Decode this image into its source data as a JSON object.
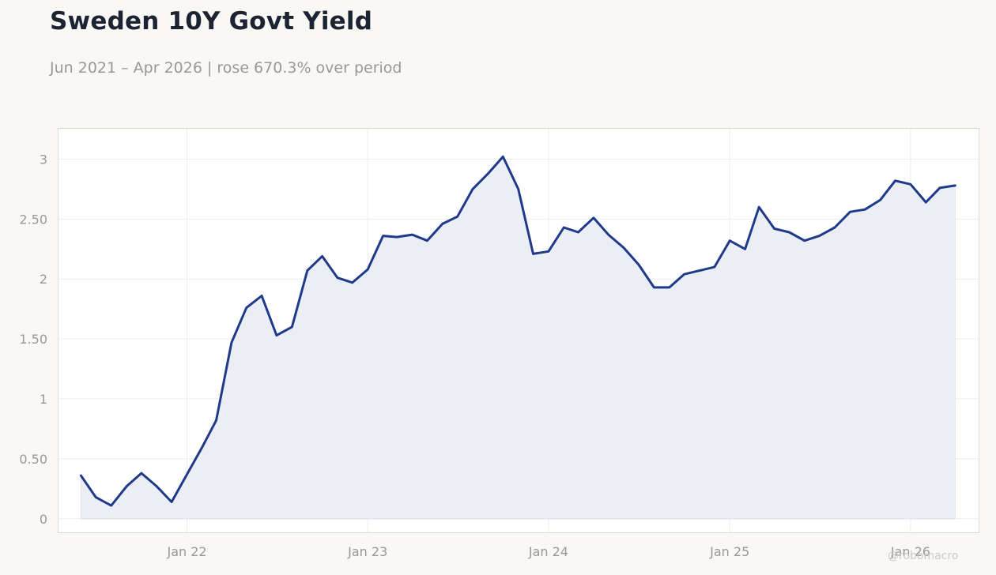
{
  "header": {
    "title": "Sweden 10Y Govt Yield",
    "subtitle": "Jun 2021 – Apr 2026 | rose 670.3% over period"
  },
  "watermark": "@robomacro",
  "colors": {
    "line": "#1f3a8a",
    "fill": "#eceef5",
    "grid": "#ededed",
    "tick_text": "#9a9893",
    "plot_border": "#dcdad5"
  },
  "chart_data": {
    "type": "area",
    "title": "Sweden 10Y Govt Yield",
    "xlabel": "",
    "ylabel": "",
    "ylim": [
      -0.12,
      3.26
    ],
    "xlim": [
      "2021-04-15",
      "2026-05-20"
    ],
    "grid": true,
    "legend": "none",
    "y_ticks": [
      {
        "value": 0,
        "label": "0"
      },
      {
        "value": 0.5,
        "label": "0.50"
      },
      {
        "value": 1,
        "label": "1"
      },
      {
        "value": 1.5,
        "label": "1.50"
      },
      {
        "value": 2,
        "label": "2"
      },
      {
        "value": 2.5,
        "label": "2.50"
      },
      {
        "value": 3,
        "label": "3"
      }
    ],
    "x_ticks": [
      {
        "value": "2022-01-01",
        "label": "Jan 22"
      },
      {
        "value": "2023-01-01",
        "label": "Jan 23"
      },
      {
        "value": "2024-01-01",
        "label": "Jan 24"
      },
      {
        "value": "2025-01-01",
        "label": "Jan 25"
      },
      {
        "value": "2026-01-01",
        "label": "Jan 26"
      }
    ],
    "x": [
      "2021-06-01",
      "2021-07-01",
      "2021-08-01",
      "2021-09-01",
      "2021-10-01",
      "2021-11-01",
      "2021-12-01",
      "2022-01-01",
      "2022-02-01",
      "2022-03-01",
      "2022-04-01",
      "2022-05-01",
      "2022-06-01",
      "2022-07-01",
      "2022-08-01",
      "2022-09-01",
      "2022-10-01",
      "2022-11-01",
      "2022-12-01",
      "2023-01-01",
      "2023-02-01",
      "2023-03-01",
      "2023-04-01",
      "2023-05-01",
      "2023-06-01",
      "2023-07-01",
      "2023-08-01",
      "2023-09-01",
      "2023-10-01",
      "2023-11-01",
      "2023-12-01",
      "2024-01-01",
      "2024-02-01",
      "2024-03-01",
      "2024-04-01",
      "2024-05-01",
      "2024-06-01",
      "2024-07-01",
      "2024-08-01",
      "2024-09-01",
      "2024-10-01",
      "2024-11-01",
      "2024-12-01",
      "2025-01-01",
      "2025-02-01",
      "2025-03-01",
      "2025-04-01",
      "2025-05-01",
      "2025-06-01",
      "2025-07-01",
      "2025-08-01",
      "2025-09-01",
      "2025-10-01",
      "2025-11-01",
      "2025-12-01",
      "2026-01-01",
      "2026-02-01",
      "2026-03-01",
      "2026-04-01"
    ],
    "series": [
      {
        "values": [
          0.36,
          0.18,
          0.11,
          0.27,
          0.38,
          0.27,
          0.14,
          0.37,
          0.6,
          0.82,
          1.47,
          1.76,
          1.86,
          1.53,
          1.6,
          2.07,
          2.19,
          2.01,
          1.97,
          2.08,
          2.36,
          2.35,
          2.37,
          2.32,
          2.46,
          2.52,
          2.75,
          2.88,
          3.02,
          2.75,
          2.21,
          2.23,
          2.43,
          2.39,
          2.51,
          2.37,
          2.26,
          2.12,
          1.93,
          1.93,
          2.04,
          2.07,
          2.1,
          2.32,
          2.25,
          2.6,
          2.42,
          2.39,
          2.32,
          2.36,
          2.43,
          2.56,
          2.58,
          2.66,
          2.82,
          2.79,
          2.64,
          2.76,
          2.78
        ]
      }
    ]
  }
}
